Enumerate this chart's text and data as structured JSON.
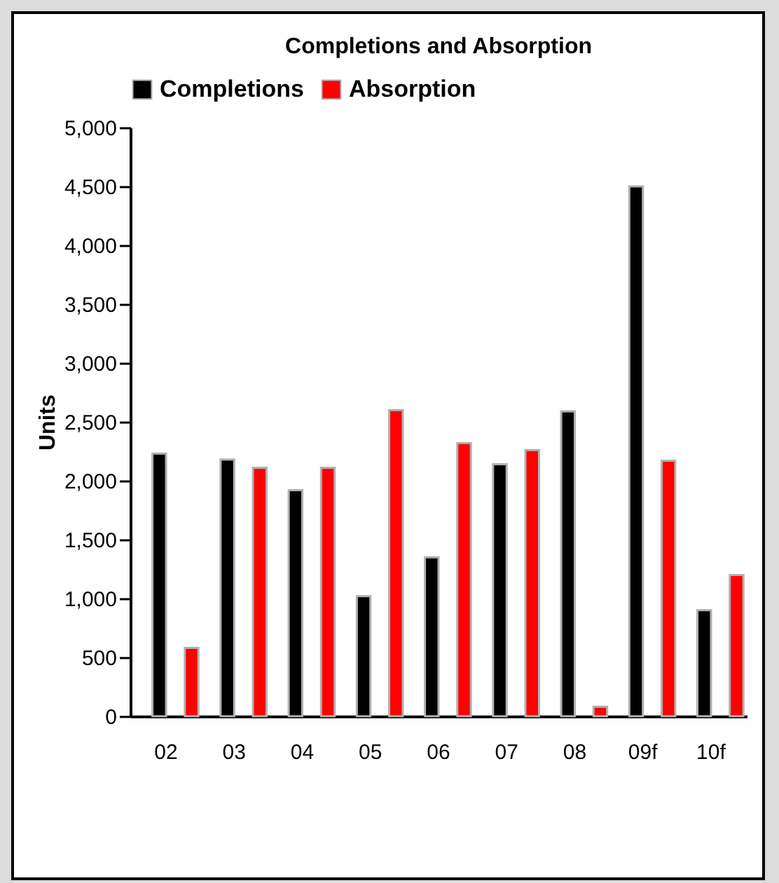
{
  "chart_data": {
    "type": "bar",
    "title": "Completions and Absorption",
    "ylabel": "Units",
    "categories": [
      "02",
      "03",
      "04",
      "05",
      "06",
      "07",
      "08",
      "09f",
      "10f"
    ],
    "series": [
      {
        "name": "Completions",
        "color": "#000000",
        "values": [
          2230,
          2180,
          1920,
          1020,
          1350,
          2140,
          2590,
          4500,
          900
        ]
      },
      {
        "name": "Absorption",
        "color": "#ff0000",
        "values": [
          580,
          2110,
          2110,
          2600,
          2320,
          2260,
          80,
          2170,
          1200
        ]
      }
    ],
    "ylim": [
      0,
      5000
    ],
    "yticks": [
      0,
      500,
      {
        "value": 1000,
        "label": "1,000"
      },
      {
        "value": 1500,
        "label": "1,500"
      },
      {
        "value": 2000,
        "label": "2,000"
      },
      {
        "value": 2500,
        "label": "2,500"
      },
      {
        "value": 3000,
        "label": "3,000"
      },
      {
        "value": 3500,
        "label": "3,500"
      },
      {
        "value": 4000,
        "label": "4,000"
      },
      {
        "value": 4500,
        "label": "4,500"
      },
      {
        "value": 5000,
        "label": "5,000"
      }
    ],
    "legend": "top",
    "grid": false
  }
}
